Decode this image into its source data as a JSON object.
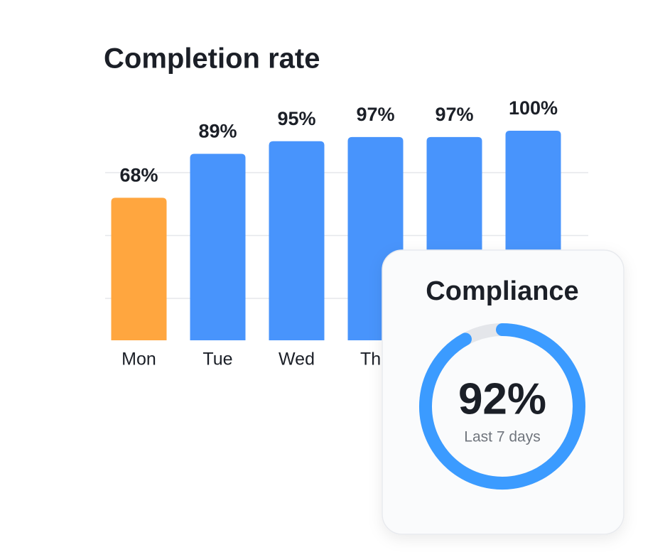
{
  "chart_data": [
    {
      "type": "bar",
      "title": "Completion rate",
      "categories": [
        "Mon",
        "Tue",
        "Wed",
        "Thu",
        null,
        null
      ],
      "values": [
        68,
        89,
        95,
        97,
        97,
        100
      ],
      "value_labels": [
        "68%",
        "89%",
        "95%",
        "97%",
        "97%",
        "100%"
      ],
      "colors": [
        "#ffa63f",
        "#4894fc",
        "#4894fc",
        "#4894fc",
        "#4894fc",
        "#4894fc"
      ],
      "ylim": [
        0,
        100
      ],
      "yticks": [
        20,
        50,
        80
      ],
      "grid": true
    },
    {
      "type": "donut",
      "title": "Compliance",
      "value": 92,
      "value_label": "92%",
      "subtitle": "Last 7 days",
      "range": [
        0,
        100
      ],
      "color": "#3b9bff",
      "track_color": "#e4e6ea"
    }
  ]
}
